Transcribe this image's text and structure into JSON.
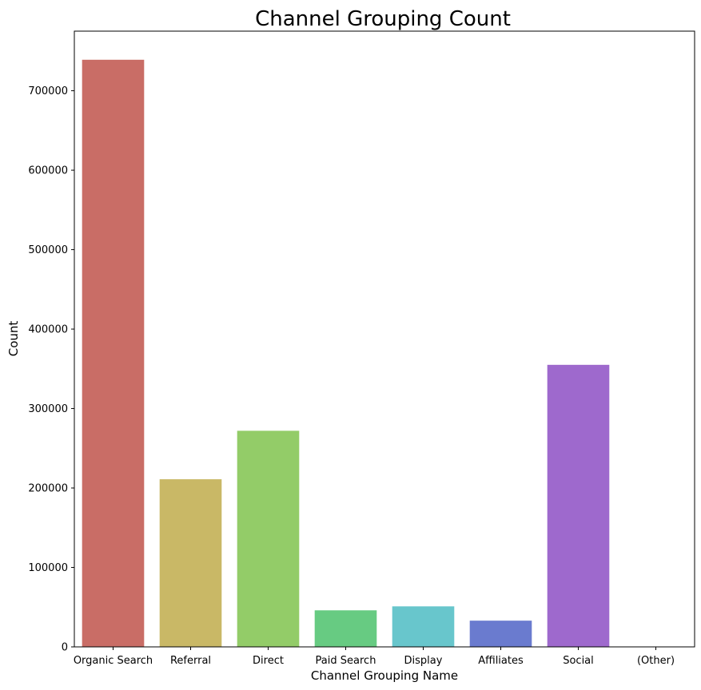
{
  "chart_data": {
    "type": "bar",
    "title": "Channel Grouping Count",
    "xlabel": "Channel Grouping Name",
    "ylabel": "Count",
    "categories": [
      "Organic Search",
      "Referral",
      "Direct",
      "Paid Search",
      "Display",
      "Affiliates",
      "Social",
      "(Other)"
    ],
    "values": [
      739000,
      211000,
      272000,
      46000,
      51000,
      33000,
      355000,
      100
    ],
    "colors": [
      "#c96d66",
      "#c9b866",
      "#93cc68",
      "#67cb82",
      "#68c6cc",
      "#6a7bcf",
      "#9e69cd",
      "#cc69b2"
    ],
    "ylim": [
      0,
      775000
    ],
    "yticks": [
      0,
      100000,
      200000,
      300000,
      400000,
      500000,
      600000,
      700000
    ],
    "ytick_labels": [
      "0",
      "100000",
      "200000",
      "300000",
      "400000",
      "500000",
      "600000",
      "700000"
    ],
    "grid": false,
    "legend": "none"
  }
}
